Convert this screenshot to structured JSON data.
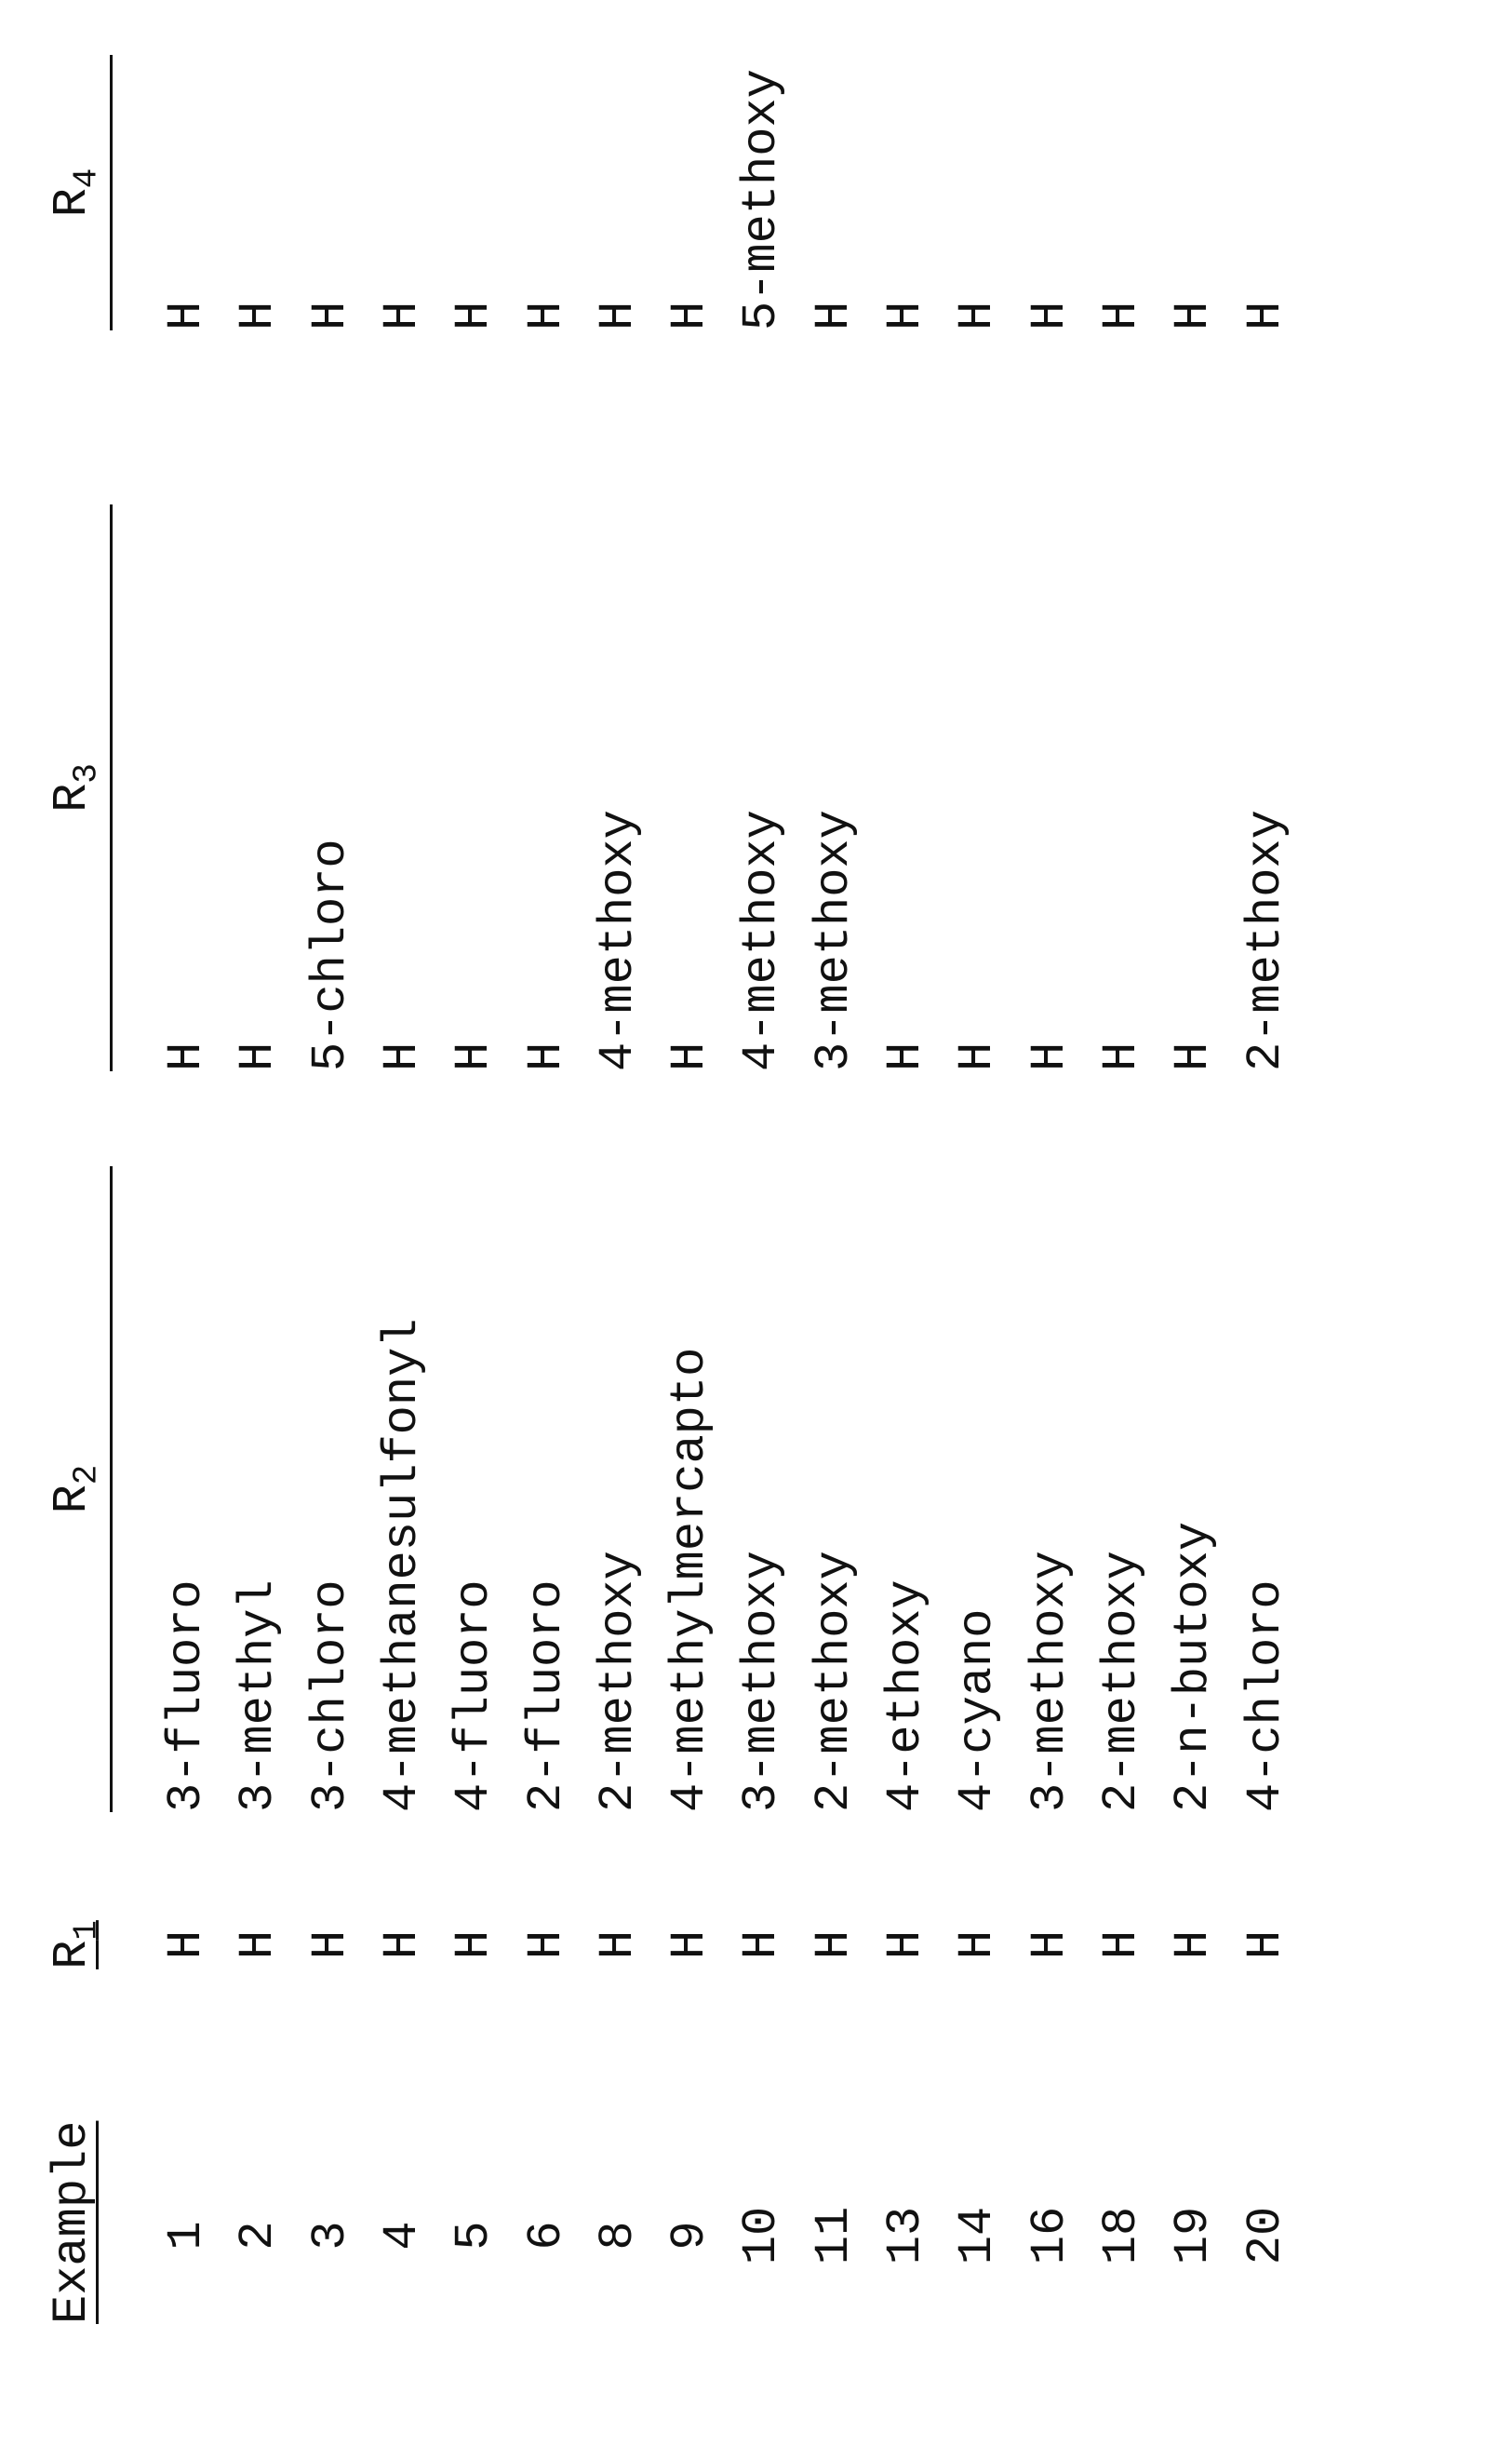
{
  "headers": {
    "example": "Example",
    "r1": "R",
    "r1_sub": "1",
    "r2": "R",
    "r2_sub": "2",
    "r3": "R",
    "r3_sub": "3",
    "r4": "R",
    "r4_sub": "4"
  },
  "rows": [
    {
      "example": "1",
      "r1": "H",
      "r2": "3-fluoro",
      "r3": "H",
      "r4": "H"
    },
    {
      "example": "2",
      "r1": "H",
      "r2": "3-methyl",
      "r3": "H",
      "r4": "H"
    },
    {
      "example": "3",
      "r1": "H",
      "r2": "3-chloro",
      "r3": "5-chloro",
      "r4": "H"
    },
    {
      "example": "4",
      "r1": "H",
      "r2": "4-methanesulfonyl",
      "r3": "H",
      "r4": "H"
    },
    {
      "example": "5",
      "r1": "H",
      "r2": "4-fluoro",
      "r3": "H",
      "r4": "H"
    },
    {
      "example": "6",
      "r1": "H",
      "r2": "2-fluoro",
      "r3": "H",
      "r4": "H"
    },
    {
      "example": "8",
      "r1": "H",
      "r2": "2-methoxy",
      "r3": "4-methoxy",
      "r4": "H"
    },
    {
      "example": "9",
      "r1": "H",
      "r2": "4-methylmercapto",
      "r3": "H",
      "r4": "H"
    },
    {
      "example": "10",
      "r1": "H",
      "r2": "3-methoxy",
      "r3": "4-methoxy",
      "r4": "5-methoxy"
    },
    {
      "example": "11",
      "r1": "H",
      "r2": "2-methoxy",
      "r3": "3-methoxy",
      "r4": "H"
    },
    {
      "example": "13",
      "r1": "H",
      "r2": "4-ethoxy",
      "r3": "H",
      "r4": "H"
    },
    {
      "example": "14",
      "r1": "H",
      "r2": "4-cyano",
      "r3": "H",
      "r4": "H"
    },
    {
      "example": "16",
      "r1": "H",
      "r2": "3-methoxy",
      "r3": "H",
      "r4": "H"
    },
    {
      "example": "18",
      "r1": "H",
      "r2": "2-methoxy",
      "r3": "H",
      "r4": "H"
    },
    {
      "example": "19",
      "r1": "H",
      "r2": "2-n-butoxy",
      "r3": "H",
      "r4": "H"
    },
    {
      "example": "20",
      "r1": "H",
      "r2": "4-chloro",
      "r3": "2-methoxy",
      "r4": "H"
    }
  ]
}
